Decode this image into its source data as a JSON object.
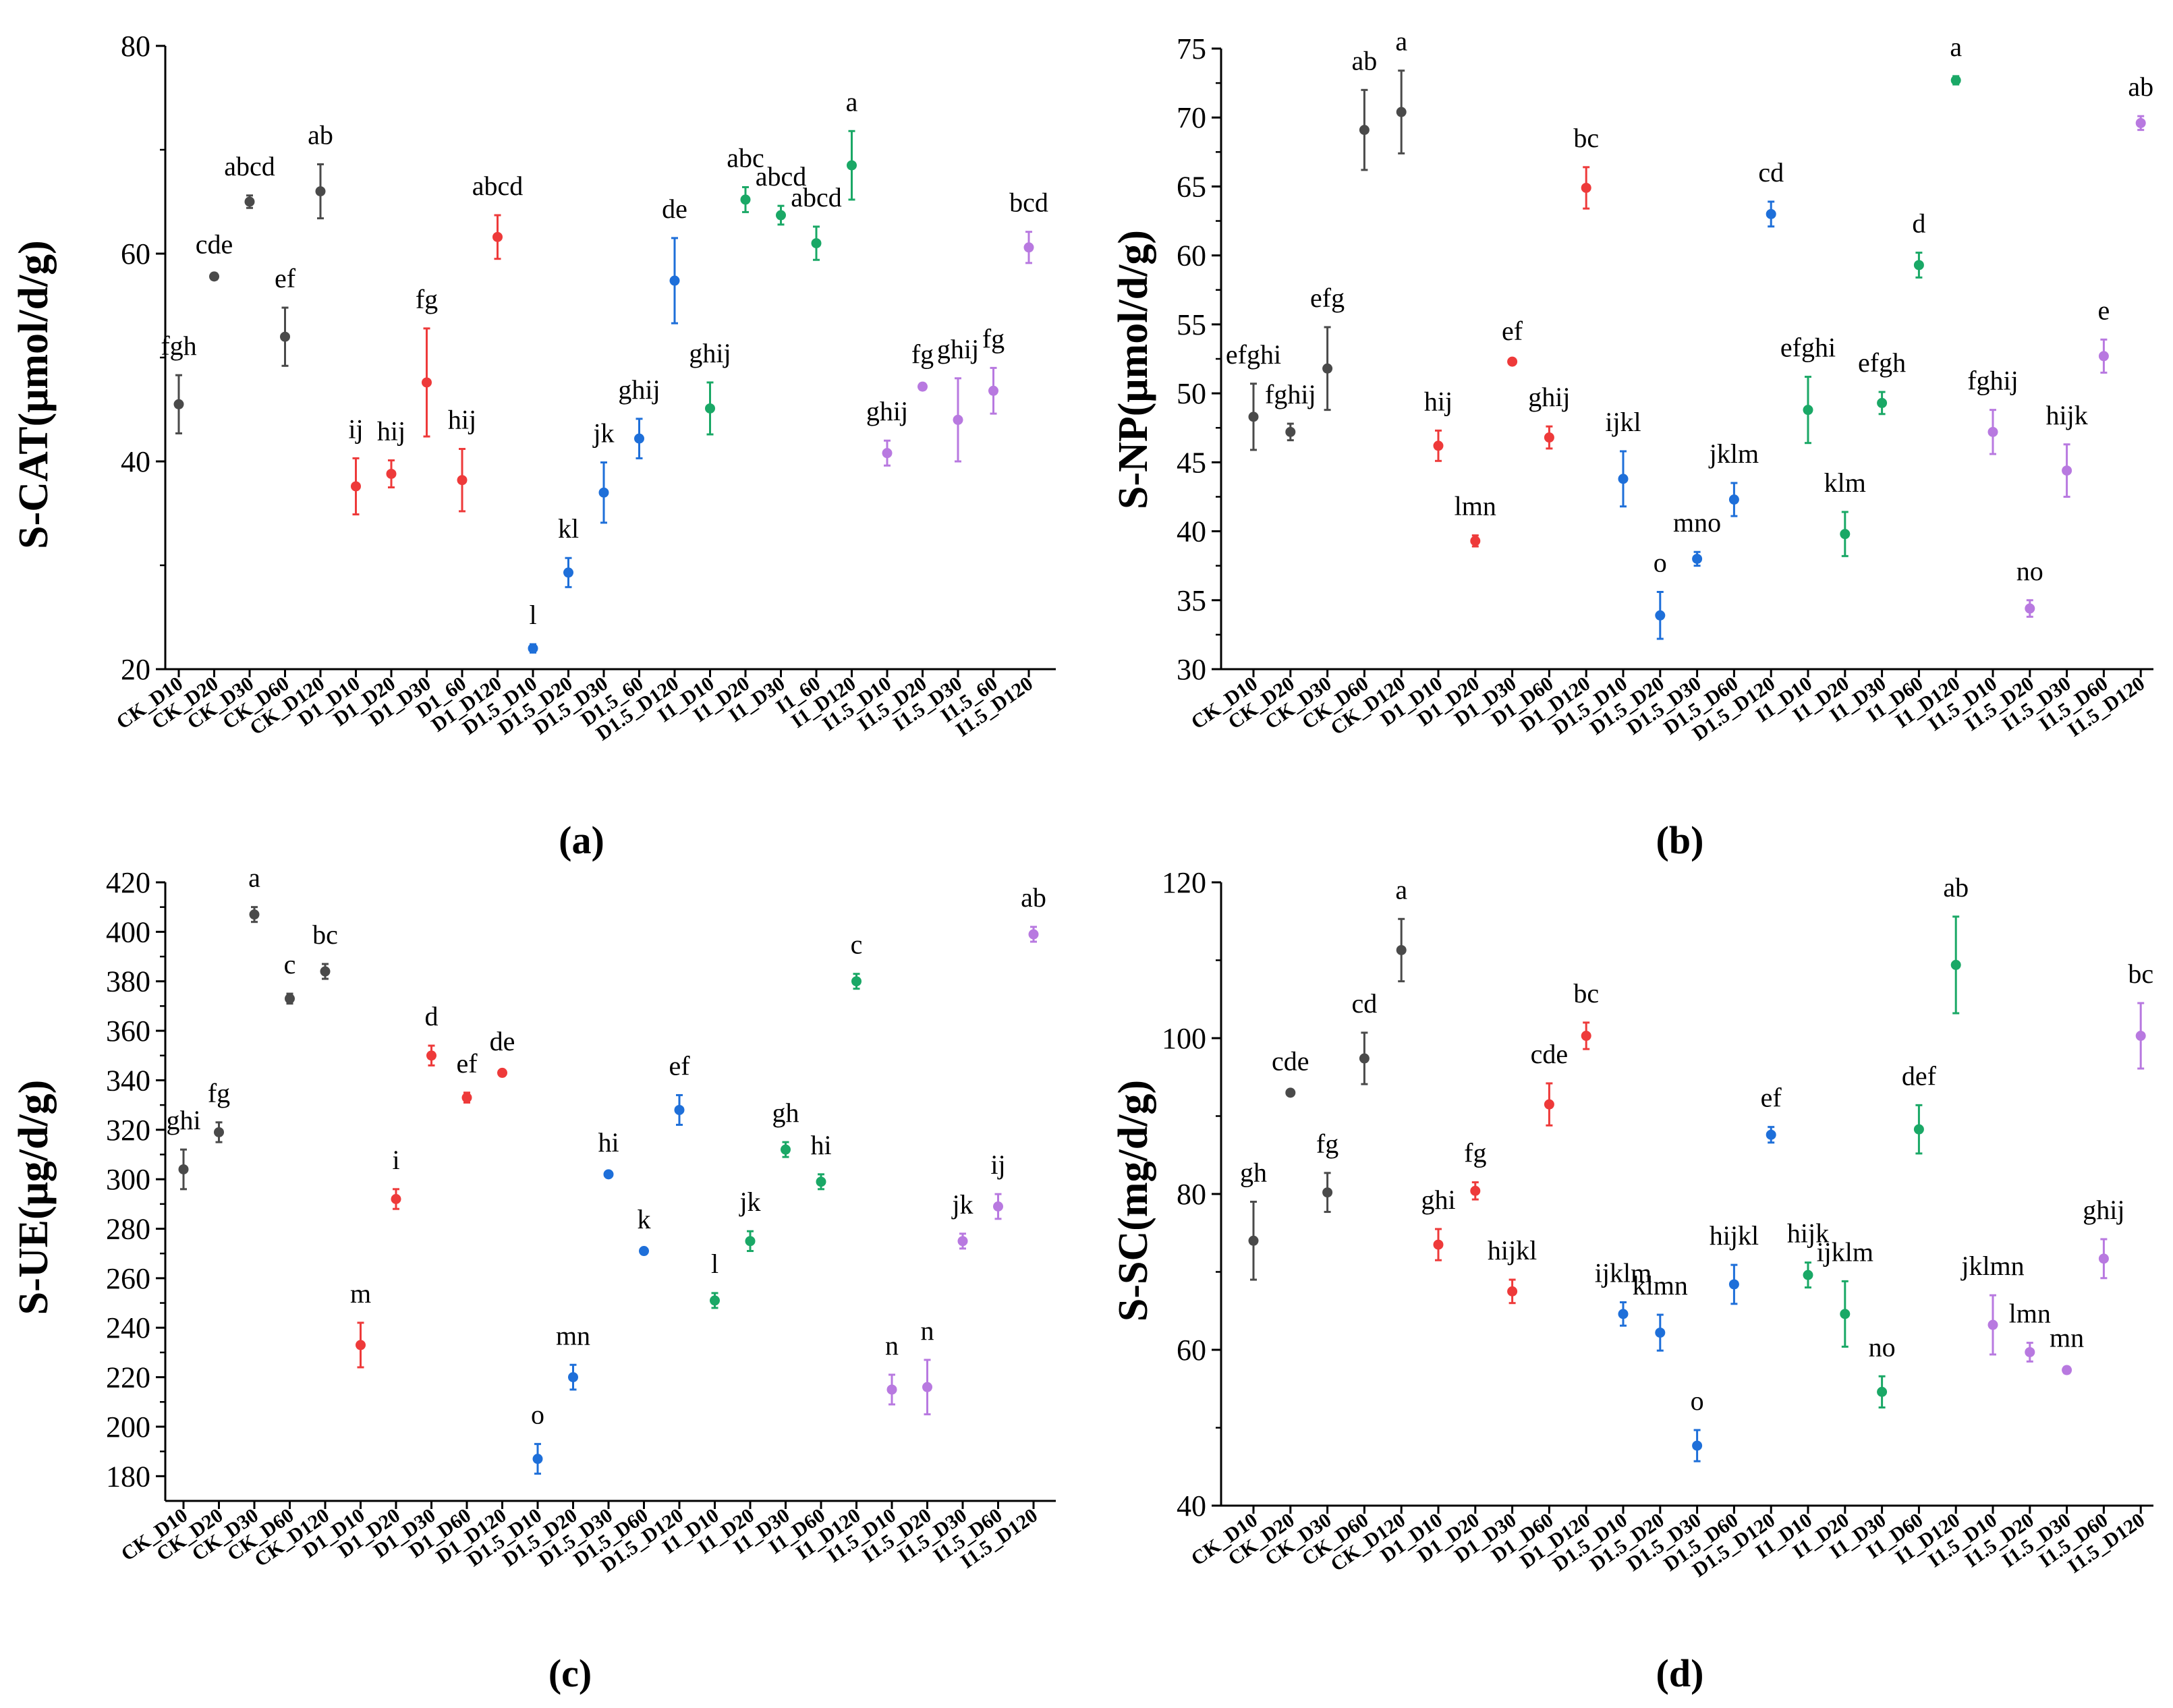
{
  "categories": [
    "CK_D10",
    "CK_D20",
    "CK_D30",
    "CK_D60",
    "CK_D120",
    "D1_D10",
    "D1_D20",
    "D1_D30",
    "D1_D60",
    "D1_D120",
    "D1.5_D10",
    "D1.5_D20",
    "D1.5_D30",
    "D1.5_D60",
    "D1.5_D120",
    "I1_D10",
    "I1_D20",
    "I1_D30",
    "I1_D60",
    "I1_D120",
    "I1.5_D10",
    "I1.5_D20",
    "I1.5_D30",
    "I1.5_D60",
    "I1.5_D120"
  ],
  "group_colors": [
    "#4a4a4a",
    "#ee3a3a",
    "#1e6fd9",
    "#1aa866",
    "#b879e0"
  ],
  "chart_data": [
    {
      "type": "scatter",
      "panel_label": "(a)",
      "ylabel": "S-CAT(μmol/d/g)",
      "ylim": [
        20,
        80
      ],
      "yticks": [
        20,
        40,
        60,
        80
      ],
      "categories": [
        "CK_D10",
        "CK_D20",
        "CK_D30",
        "CK_D60",
        "CK_D120",
        "D1_D10",
        "D1_D20",
        "D1_D30",
        "D1_60",
        "D1_D120",
        "D1.5_D10",
        "D1.5_D20",
        "D1.5_D30",
        "D1.5_60",
        "D1.5_D120",
        "I1_D10",
        "I1_D20",
        "I1_D30",
        "I1_60",
        "I1_D120",
        "I1.5_D10",
        "I1.5_D20",
        "I1.5_D30",
        "I1.5_60",
        "I1.5_D120"
      ],
      "values": [
        45.5,
        57.8,
        65.0,
        52.0,
        66.0,
        37.6,
        38.8,
        47.6,
        38.2,
        61.6,
        22.0,
        29.3,
        37.0,
        42.2,
        57.4,
        45.1,
        65.2,
        63.7,
        61.0,
        68.5,
        40.8,
        47.2,
        44.0,
        46.8,
        60.6
      ],
      "errors": [
        2.8,
        0.3,
        0.6,
        2.8,
        2.6,
        2.7,
        1.3,
        5.2,
        3.0,
        2.1,
        0.4,
        1.4,
        2.9,
        1.9,
        4.1,
        2.5,
        1.2,
        0.9,
        1.6,
        3.3,
        1.2,
        0.3,
        4.0,
        2.2,
        1.5
      ],
      "labels": [
        "fgh",
        "cde",
        "abcd",
        "ef",
        "ab",
        "ij",
        "hij",
        "fg",
        "hij",
        "abcd",
        "l",
        "kl",
        "jk",
        "ghij",
        "de",
        "ghij",
        "abc",
        "abcd",
        "abcd",
        "a",
        "ghij",
        "fg",
        "ghij",
        "fg",
        "bcd"
      ]
    },
    {
      "type": "scatter",
      "panel_label": "(b)",
      "ylabel": "S-NP(μmol/d/g)",
      "ylim": [
        30,
        75
      ],
      "yticks": [
        30,
        35,
        40,
        45,
        50,
        55,
        60,
        65,
        70,
        75
      ],
      "categories": [
        "CK_D10",
        "CK_D20",
        "CK_D30",
        "CK_D60",
        "CK_D120",
        "D1_D10",
        "D1_D20",
        "D1_D30",
        "D1_D60",
        "D1_D120",
        "D1.5_D10",
        "D1.5_D20",
        "D1.5_D30",
        "D1.5_D60",
        "D1.5_D120",
        "I1_D10",
        "I1_D20",
        "I1_D30",
        "I1_D60",
        "I1_D120",
        "I1.5_D10",
        "I1.5_D20",
        "I1.5_D30",
        "I1.5_D60",
        "I1.5_D120"
      ],
      "values": [
        48.3,
        47.2,
        51.8,
        69.1,
        70.4,
        46.2,
        39.3,
        52.3,
        46.8,
        64.9,
        43.8,
        33.9,
        38.0,
        42.3,
        63.0,
        48.8,
        39.8,
        49.3,
        59.3,
        72.7,
        47.2,
        34.4,
        44.4,
        52.7,
        69.6
      ],
      "errors": [
        2.4,
        0.6,
        3.0,
        2.9,
        3.0,
        1.1,
        0.4,
        0.1,
        0.8,
        1.5,
        2.0,
        1.7,
        0.5,
        1.2,
        0.9,
        2.4,
        1.6,
        0.8,
        0.9,
        0.3,
        1.6,
        0.6,
        1.9,
        1.2,
        0.5
      ],
      "labels": [
        "efghi",
        "fghij",
        "efg",
        "ab",
        "a",
        "hij",
        "lmn",
        "ef",
        "ghij",
        "bc",
        "ijkl",
        "o",
        "mno",
        "jklm",
        "cd",
        "efghi",
        "klm",
        "efgh",
        "d",
        "a",
        "fghij",
        "no",
        "hijk",
        "e",
        "ab"
      ]
    },
    {
      "type": "scatter",
      "panel_label": "(c)",
      "ylabel": "S-UE(μg/d/g)",
      "ylim": [
        170,
        420
      ],
      "yticks": [
        180,
        200,
        220,
        240,
        260,
        280,
        300,
        320,
        340,
        360,
        380,
        400,
        420
      ],
      "categories": [
        "CK_D10",
        "CK_D20",
        "CK_D30",
        "CK_D60",
        "CK_D120",
        "D1_D10",
        "D1_D20",
        "D1_D30",
        "D1_D60",
        "D1_D120",
        "D1.5_D10",
        "D1.5_D20",
        "D1.5_D30",
        "D1.5_D60",
        "D1.5_D120",
        "I1_D10",
        "I1_D20",
        "I1_D30",
        "I1_D60",
        "I1_D120",
        "I1.5_D10",
        "I1.5_D20",
        "I1.5_D30",
        "I1.5_D60",
        "I1.5_D120"
      ],
      "values": [
        304,
        319,
        407,
        373,
        384,
        233,
        292,
        350,
        333,
        343,
        187,
        220,
        302,
        271,
        328,
        251,
        275,
        312,
        299,
        380,
        215,
        216,
        275,
        289,
        399
      ],
      "errors": [
        8,
        4,
        3,
        2,
        3,
        9,
        4,
        4,
        2,
        1,
        6,
        5,
        1,
        1,
        6,
        3,
        4,
        3,
        3,
        3,
        6,
        11,
        3,
        5,
        3
      ],
      "labels": [
        "ghi",
        "fg",
        "a",
        "c",
        "bc",
        "m",
        "i",
        "d",
        "ef",
        "de",
        "o",
        "mn",
        "hi",
        "k",
        "ef",
        "l",
        "jk",
        "gh",
        "hi",
        "c",
        "n",
        "n",
        "jk",
        "ij",
        "ab"
      ]
    },
    {
      "type": "scatter",
      "panel_label": "(d)",
      "ylabel": "S-SC(mg/d/g)",
      "ylim": [
        40,
        120
      ],
      "yticks": [
        40,
        60,
        80,
        100,
        120
      ],
      "categories": [
        "CK_D10",
        "CK_D20",
        "CK_D30",
        "CK_D60",
        "CK_D120",
        "D1_D10",
        "D1_D20",
        "D1_D30",
        "D1_D60",
        "D1_D120",
        "D1.5_D10",
        "D1.5_D20",
        "D1.5_D30",
        "D1.5_D60",
        "D1.5_D120",
        "I1_D10",
        "I1_D20",
        "I1_D30",
        "I1_D60",
        "I1_D120",
        "I1.5_D10",
        "I1.5_D20",
        "I1.5_D30",
        "I1.5_D60",
        "I1.5_D120"
      ],
      "values": [
        74.0,
        93.0,
        80.2,
        97.4,
        111.3,
        73.5,
        80.4,
        67.5,
        91.5,
        100.3,
        64.6,
        62.2,
        47.7,
        68.4,
        87.6,
        69.6,
        64.6,
        54.6,
        88.3,
        109.4,
        63.2,
        59.7,
        57.4,
        71.7,
        100.3
      ],
      "errors": [
        5.0,
        0.3,
        2.5,
        3.3,
        4.0,
        2.0,
        1.1,
        1.5,
        2.7,
        1.7,
        1.5,
        2.3,
        2.0,
        2.5,
        1.0,
        1.6,
        4.2,
        2.0,
        3.1,
        6.2,
        3.8,
        1.2,
        0.4,
        2.5,
        4.2
      ],
      "labels": [
        "gh",
        "cde",
        "fg",
        "cd",
        "a",
        "ghi",
        "fg",
        "hijkl",
        "cde",
        "bc",
        "ijklm",
        "klmn",
        "o",
        "hijkl",
        "ef",
        "hijk",
        "ijklm",
        "no",
        "def",
        "ab",
        "jklmn",
        "lmn",
        "mn",
        "ghij",
        "bc"
      ]
    }
  ]
}
